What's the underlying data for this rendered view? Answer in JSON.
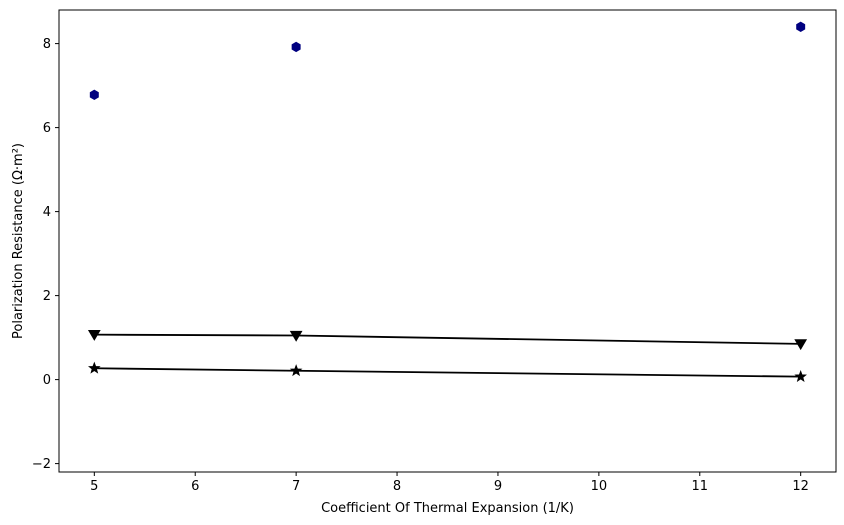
{
  "chart_data": {
    "type": "line",
    "xlabel": "Coefficient Of Thermal Expansion (1/K)",
    "ylabel": "Polarization Resistance (Ω·m²)",
    "xlim": [
      4.65,
      12.35
    ],
    "ylim": [
      -2.2,
      8.8
    ],
    "xticks": [
      5,
      6,
      7,
      8,
      9,
      10,
      11,
      12
    ],
    "yticks": [
      -2,
      0,
      2,
      4,
      6,
      8
    ],
    "xtick_labels": [
      "5",
      "6",
      "7",
      "8",
      "9",
      "10",
      "11",
      "12"
    ],
    "ytick_labels": [
      "−2",
      "0",
      "2",
      "4",
      "6",
      "8"
    ],
    "grid": false,
    "series": [
      {
        "x": [
          5,
          7,
          12
        ],
        "values": [
          6.78,
          7.92,
          8.4
        ],
        "marker": "hexagon",
        "color": "#000080",
        "line": false
      },
      {
        "x": [
          5,
          7,
          12
        ],
        "values": [
          1.07,
          1.05,
          0.85
        ],
        "marker": "triangle-down",
        "color": "#000000",
        "line": true
      },
      {
        "x": [
          5,
          7,
          12
        ],
        "values": [
          0.27,
          0.21,
          0.07
        ],
        "marker": "star",
        "color": "#000000",
        "line": true
      }
    ]
  }
}
